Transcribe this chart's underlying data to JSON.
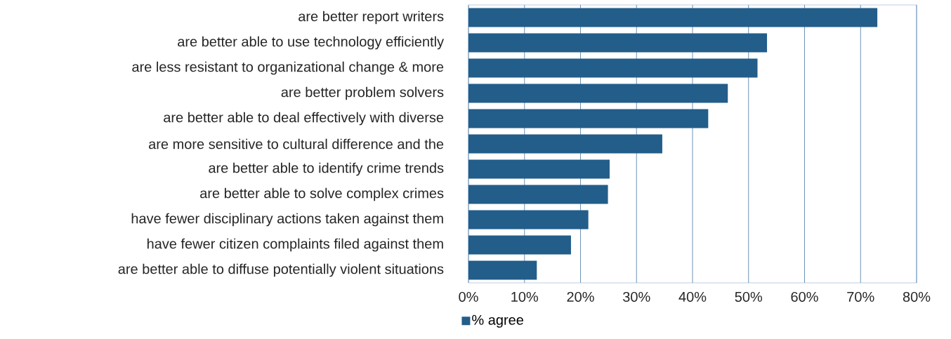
{
  "chart_data": {
    "type": "bar",
    "orientation": "horizontal",
    "categories": [
      "are better report writers",
      "are better able to use technology efficiently",
      "are less resistant to organizational change & more",
      "are better problem solvers",
      "are better able to deal effectively with diverse",
      "are more sensitive to cultural difference and the",
      "are better able to identify crime trends",
      "are better able to solve complex crimes",
      "have fewer disciplinary actions taken against them",
      "have fewer citizen complaints filed against them",
      "are better able to diffuse potentially violent situations"
    ],
    "series": [
      {
        "name": "% agree",
        "color": "#235d8a",
        "values": [
          73.0,
          53.3,
          51.6,
          46.3,
          42.8,
          34.6,
          25.2,
          24.9,
          21.4,
          18.3,
          12.2
        ]
      }
    ],
    "xlim": [
      0,
      80
    ],
    "xticks": [
      {
        "value": 0,
        "label": "0%"
      },
      {
        "value": 10,
        "label": "10%"
      },
      {
        "value": 20,
        "label": "20%"
      },
      {
        "value": 30,
        "label": "30%"
      },
      {
        "value": 40,
        "label": "40%"
      },
      {
        "value": 50,
        "label": "50%"
      },
      {
        "value": 60,
        "label": "60%"
      },
      {
        "value": 70,
        "label": "70%"
      },
      {
        "value": 80,
        "label": "80%"
      }
    ],
    "grid": "x",
    "legend": "bottom"
  }
}
